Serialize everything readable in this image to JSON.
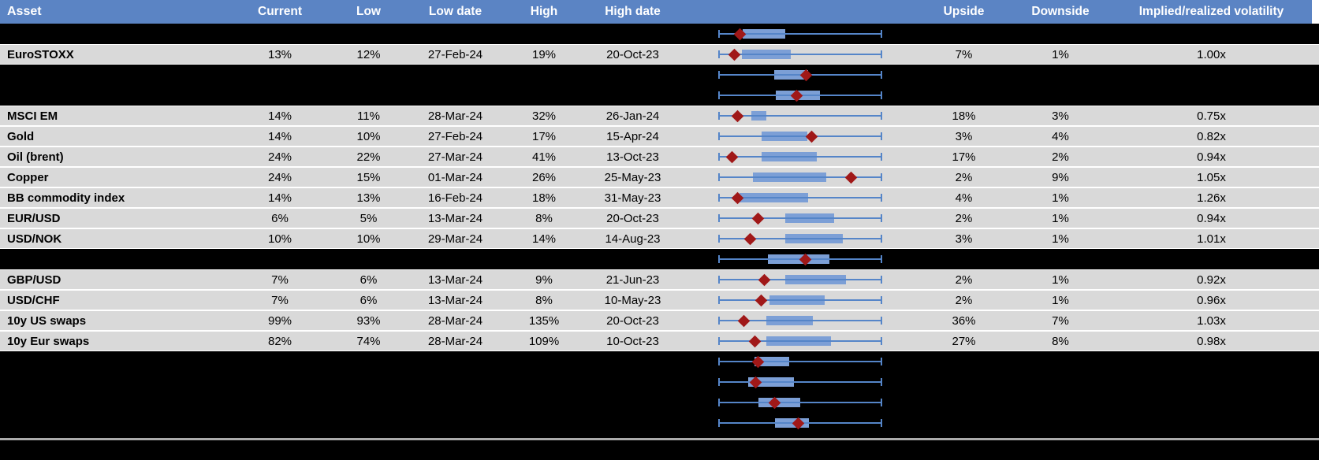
{
  "header": {
    "asset": "Asset",
    "current": "Current",
    "low": "Low",
    "low_date": "Low date",
    "high": "High",
    "high_date": "High date",
    "upside": "Upside",
    "downside": "Downside",
    "implied_realized": "Implied/realized volatility"
  },
  "colors": {
    "header_bg": "#5B84C4",
    "row_gray": "#D9D9D9",
    "row_black": "#000000",
    "box_fill": "#7C9FD6",
    "whisker": "#5585C8",
    "marker": "#A01818",
    "divider": "#ABABAB"
  },
  "table": {
    "rows": [
      {
        "asset": "",
        "current": "",
        "low": "",
        "low_date": "",
        "high": "",
        "high_date": "",
        "upside": "",
        "downside": "",
        "implied_realized": "",
        "bg": "black",
        "boxplot": {
          "box_start": 0.145,
          "box_end": 0.41,
          "marker": 0.13
        }
      },
      {
        "asset": "EuroSTOXX",
        "current": "13%",
        "low": "12%",
        "low_date": "27-Feb-24",
        "high": "19%",
        "high_date": "20-Oct-23",
        "upside": "7%",
        "downside": "1%",
        "implied_realized": "1.00x",
        "bg": "gray",
        "boxplot": {
          "box_start": 0.14,
          "box_end": 0.44,
          "marker": 0.095
        }
      },
      {
        "asset": "",
        "current": "",
        "low": "",
        "low_date": "",
        "high": "",
        "high_date": "",
        "upside": "",
        "downside": "",
        "implied_realized": "",
        "bg": "black",
        "boxplot": {
          "box_start": 0.34,
          "box_end": 0.55,
          "marker": 0.535
        }
      },
      {
        "asset": "",
        "current": "",
        "low": "",
        "low_date": "",
        "high": "",
        "high_date": "",
        "upside": "",
        "downside": "",
        "implied_realized": "",
        "bg": "black",
        "boxplot": {
          "box_start": 0.35,
          "box_end": 0.62,
          "marker": 0.48
        }
      },
      {
        "asset": "MSCI EM",
        "current": "14%",
        "low": "11%",
        "low_date": "28-Mar-24",
        "high": "32%",
        "high_date": "26-Jan-24",
        "upside": "18%",
        "downside": "3%",
        "implied_realized": "0.75x",
        "bg": "gray",
        "boxplot": {
          "box_start": 0.2,
          "box_end": 0.29,
          "marker": 0.115
        }
      },
      {
        "asset": "Gold",
        "current": "14%",
        "low": "10%",
        "low_date": "27-Feb-24",
        "high": "17%",
        "high_date": "15-Apr-24",
        "upside": "3%",
        "downside": "4%",
        "implied_realized": "0.82x",
        "bg": "gray",
        "boxplot": {
          "box_start": 0.26,
          "box_end": 0.545,
          "marker": 0.57
        }
      },
      {
        "asset": "Oil (brent)",
        "current": "24%",
        "low": "22%",
        "low_date": "27-Mar-24",
        "high": "41%",
        "high_date": "13-Oct-23",
        "upside": "17%",
        "downside": "2%",
        "implied_realized": "0.94x",
        "bg": "gray",
        "boxplot": {
          "box_start": 0.26,
          "box_end": 0.6,
          "marker": 0.08
        }
      },
      {
        "asset": "Copper",
        "current": "24%",
        "low": "15%",
        "low_date": "01-Mar-24",
        "high": "26%",
        "high_date": "25-May-23",
        "upside": "2%",
        "downside": "9%",
        "implied_realized": "1.05x",
        "bg": "gray",
        "boxplot": {
          "box_start": 0.21,
          "box_end": 0.66,
          "marker": 0.815
        }
      },
      {
        "asset": "BB commodity index",
        "current": "14%",
        "low": "13%",
        "low_date": "16-Feb-24",
        "high": "18%",
        "high_date": "31-May-23",
        "upside": "4%",
        "downside": "1%",
        "implied_realized": "1.26x",
        "bg": "gray",
        "boxplot": {
          "box_start": 0.125,
          "box_end": 0.55,
          "marker": 0.115
        }
      },
      {
        "asset": "EUR/USD",
        "current": "6%",
        "low": "5%",
        "low_date": "13-Mar-24",
        "high": "8%",
        "high_date": "20-Oct-23",
        "upside": "2%",
        "downside": "1%",
        "implied_realized": "0.94x",
        "bg": "gray",
        "boxplot": {
          "box_start": 0.41,
          "box_end": 0.71,
          "marker": 0.24
        }
      },
      {
        "asset": "USD/NOK",
        "current": "10%",
        "low": "10%",
        "low_date": "29-Mar-24",
        "high": "14%",
        "high_date": "14-Aug-23",
        "upside": "3%",
        "downside": "1%",
        "implied_realized": "1.01x",
        "bg": "gray",
        "boxplot": {
          "box_start": 0.41,
          "box_end": 0.76,
          "marker": 0.19
        }
      },
      {
        "asset": "",
        "current": "",
        "low": "",
        "low_date": "",
        "high": "",
        "high_date": "",
        "upside": "",
        "downside": "",
        "implied_realized": "",
        "bg": "black",
        "boxplot": {
          "box_start": 0.3,
          "box_end": 0.68,
          "marker": 0.53
        }
      },
      {
        "asset": "GBP/USD",
        "current": "7%",
        "low": "6%",
        "low_date": "13-Mar-24",
        "high": "9%",
        "high_date": "21-Jun-23",
        "upside": "2%",
        "downside": "1%",
        "implied_realized": "0.92x",
        "bg": "gray",
        "boxplot": {
          "box_start": 0.41,
          "box_end": 0.78,
          "marker": 0.28
        }
      },
      {
        "asset": "USD/CHF",
        "current": "7%",
        "low": "6%",
        "low_date": "13-Mar-24",
        "high": "8%",
        "high_date": "10-May-23",
        "upside": "2%",
        "downside": "1%",
        "implied_realized": "0.96x",
        "bg": "gray",
        "boxplot": {
          "box_start": 0.31,
          "box_end": 0.65,
          "marker": 0.26
        }
      },
      {
        "asset": "10y US swaps",
        "current": "99%",
        "low": "93%",
        "low_date": "28-Mar-24",
        "high": "135%",
        "high_date": "20-Oct-23",
        "upside": "36%",
        "downside": "7%",
        "implied_realized": "1.03x",
        "bg": "gray",
        "boxplot": {
          "box_start": 0.29,
          "box_end": 0.58,
          "marker": 0.155
        }
      },
      {
        "asset": "10y Eur swaps",
        "current": "82%",
        "low": "74%",
        "low_date": "28-Mar-24",
        "high": "109%",
        "high_date": "10-Oct-23",
        "upside": "27%",
        "downside": "8%",
        "implied_realized": "0.98x",
        "bg": "gray",
        "boxplot": {
          "box_start": 0.29,
          "box_end": 0.69,
          "marker": 0.22
        }
      },
      {
        "asset": "",
        "current": "",
        "low": "",
        "low_date": "",
        "high": "",
        "high_date": "",
        "upside": "",
        "downside": "",
        "implied_realized": "",
        "bg": "black",
        "boxplot": {
          "box_start": 0.22,
          "box_end": 0.43,
          "marker": 0.24
        }
      },
      {
        "asset": "",
        "current": "",
        "low": "",
        "low_date": "",
        "high": "",
        "high_date": "",
        "upside": "",
        "downside": "",
        "implied_realized": "",
        "bg": "black",
        "boxplot": {
          "box_start": 0.18,
          "box_end": 0.46,
          "marker": 0.225
        }
      },
      {
        "asset": "",
        "current": "",
        "low": "",
        "low_date": "",
        "high": "",
        "high_date": "",
        "upside": "",
        "downside": "",
        "implied_realized": "",
        "bg": "black",
        "boxplot": {
          "box_start": 0.245,
          "box_end": 0.5,
          "marker": 0.34
        }
      },
      {
        "asset": "",
        "current": "",
        "low": "",
        "low_date": "",
        "high": "",
        "high_date": "",
        "upside": "",
        "downside": "",
        "implied_realized": "",
        "bg": "black",
        "boxplot": {
          "box_start": 0.345,
          "box_end": 0.555,
          "marker": 0.49
        }
      }
    ]
  }
}
